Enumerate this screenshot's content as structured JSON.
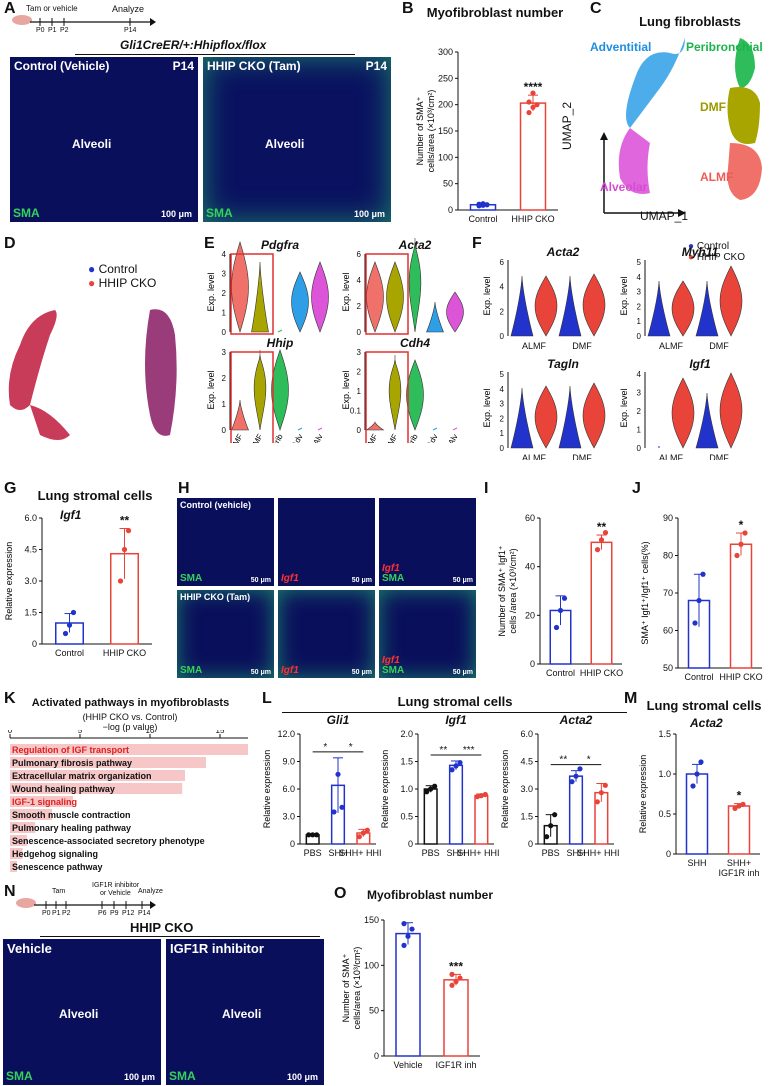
{
  "panels": {
    "A": {
      "label": "A",
      "timeline_treat": "Tam or vehicle",
      "timeline_analyze": "Analyze",
      "timeline_p0": "P0",
      "timeline_p1": "P1",
      "timeline_p2": "P2",
      "timeline_p14": "P14",
      "genotype": "Gli1CreER/+:Hhipflox/flox",
      "img1_title": "Control (Vehicle)",
      "img2_title": "HHIP CKO (Tam)",
      "age": "P14",
      "alveoli": "Alveoli",
      "sma": "SMA",
      "scale": "100 μm"
    },
    "B": {
      "label": "B",
      "title": "Myofibroblast number",
      "ylabel": "Number of SMA⁺ cells/area (×10³/cm²)",
      "sig": "****"
    },
    "C": {
      "label": "C",
      "title": "Lung fibroblasts",
      "xlabel": "UMAP_1",
      "ylabel": "UMAP_2",
      "clusters": [
        "Adventitial",
        "Peribronchial",
        "DMF",
        "Alveolar",
        "ALMF"
      ]
    },
    "D": {
      "label": "D",
      "legend": [
        "Control",
        "HHIP CKO"
      ]
    },
    "E": {
      "label": "E",
      "genes": [
        "Pdgfra",
        "Acta2",
        "Hhip",
        "Cdh4"
      ],
      "ylabel": "Exp. level",
      "groups": [
        "ALMF",
        "DMF",
        "Perib",
        "Adv",
        "Alv"
      ]
    },
    "F": {
      "label": "F",
      "genes": [
        "Acta2",
        "Myh11",
        "Tagln",
        "Igf1"
      ],
      "ylabel": "Exp. level",
      "groups": [
        "ALMF",
        "DMF"
      ],
      "legend": [
        "Control",
        "HHIP CKO"
      ]
    },
    "G": {
      "label": "G",
      "title": "Lung stromal cells",
      "gene": "Igf1",
      "ylabel": "Relative expression",
      "sig": "**"
    },
    "H": {
      "label": "H",
      "row1": "Control (vehicle)",
      "row2": "HHIP CKO (Tam)",
      "sma": "SMA",
      "igf1": "Igf1",
      "scale": "50 μm"
    },
    "I": {
      "label": "I",
      "ylabel": "Number of SMA⁺ Igf1⁺ cells /area (×10³/cm²)",
      "sig": "**"
    },
    "J": {
      "label": "J",
      "ylabel": "SMA⁺ Igf1⁺/Igf1⁺ cells(%)",
      "sig": "*"
    },
    "K": {
      "label": "K",
      "title": "Activated pathways in myofibroblasts",
      "subtitle": "(HHIP CKO vs. Control)",
      "axis_title": "−log (p value)"
    },
    "L": {
      "label": "L",
      "title": "Lung stromal cells",
      "ylabel": "Relative expression"
    },
    "M": {
      "label": "M",
      "title": "Lung stromal cells",
      "gene": "Acta2",
      "ylabel": "Relative expression",
      "sig": "*"
    },
    "N": {
      "label": "N",
      "timeline_tam": "Tam",
      "timeline_inh": "IGF1R inhibitor",
      "timeline_or": "or Vehicle",
      "timeline_analyze": "Analyze",
      "timeline_p0": "P0",
      "timeline_p1": "P1",
      "timeline_p2": "P2",
      "timeline_p6": "P6",
      "timeline_p9": "P9",
      "timeline_p12": "P12",
      "timeline_p14": "P14",
      "group": "HHIP CKO",
      "img1": "Vehicle",
      "img2": "IGF1R inhibitor",
      "alveoli": "Alveoli",
      "sma": "SMA",
      "scale": "100 μm"
    },
    "O": {
      "label": "O",
      "title": "Myofibroblast number",
      "ylabel": "Number of SMA⁺ cells/area (×10³/cm²)",
      "sig": "***"
    }
  },
  "chart_data": [
    {
      "panel": "B",
      "type": "bar",
      "categories": [
        "Control",
        "HHIP CKO"
      ],
      "values": [
        10,
        203
      ],
      "errors": [
        3,
        15
      ],
      "points": [
        [
          8,
          9,
          10,
          11,
          12
        ],
        [
          185,
          195,
          200,
          205,
          222
        ]
      ],
      "colors": [
        "#2233cc",
        "#e8443a"
      ],
      "ylim": [
        0,
        300
      ],
      "yticks": [
        0,
        50,
        100,
        150,
        200,
        250,
        300
      ],
      "sig": "****"
    },
    {
      "panel": "G",
      "type": "bar",
      "categories": [
        "Control",
        "HHIP CKO"
      ],
      "values": [
        1.0,
        4.3
      ],
      "errors": [
        0.45,
        1.2
      ],
      "points": [
        [
          0.5,
          0.9,
          1.5
        ],
        [
          3.0,
          4.5,
          5.4
        ]
      ],
      "colors": [
        "#2233cc",
        "#e8443a"
      ],
      "ylim": [
        0,
        6.0
      ],
      "yticks": [
        0,
        1.5,
        3.0,
        4.5,
        6.0
      ],
      "sig": "**"
    },
    {
      "panel": "I",
      "type": "bar",
      "categories": [
        "Control",
        "HHIP CKO"
      ],
      "values": [
        22,
        50
      ],
      "errors": [
        6,
        3
      ],
      "points": [
        [
          15,
          22,
          27
        ],
        [
          47,
          51,
          54
        ]
      ],
      "colors": [
        "#2233cc",
        "#e8443a"
      ],
      "ylim": [
        0,
        60
      ],
      "yticks": [
        0,
        20,
        40,
        60
      ],
      "sig": "**"
    },
    {
      "panel": "J",
      "type": "bar",
      "categories": [
        "Control",
        "HHIP CKO"
      ],
      "values": [
        68,
        83
      ],
      "errors": [
        7,
        3
      ],
      "points": [
        [
          62,
          68,
          75
        ],
        [
          80,
          83,
          86
        ]
      ],
      "colors": [
        "#2233cc",
        "#e8443a"
      ],
      "ylim": [
        50,
        90
      ],
      "yticks": [
        50,
        60,
        70,
        80,
        90
      ],
      "sig": "*"
    },
    {
      "panel": "K",
      "type": "bar",
      "orientation": "horizontal",
      "categories": [
        "Regulation of IGF transport",
        "Pulmonary fibrosis pathway",
        "Extracellular matrix organization",
        "Wound healing pathway",
        "IGF-1 signaling",
        "Smooth muscle contraction",
        "Pulmonary healing pathway",
        "Senescence-associated secretory phenotype",
        "Hedgehog signaling",
        "Senescence pathway"
      ],
      "values": [
        17,
        14,
        12.5,
        12.3,
        4.5,
        3,
        1.8,
        1.2,
        0.9,
        0.5
      ],
      "highlight": [
        true,
        false,
        false,
        false,
        true,
        false,
        false,
        false,
        false,
        false
      ],
      "xlim": [
        0,
        17
      ],
      "xticks": [
        0,
        5,
        10,
        15
      ]
    },
    {
      "panel": "L",
      "gene": "Gli1",
      "type": "bar",
      "categories": [
        "PBS",
        "SHH",
        "SHH+ HHIP"
      ],
      "values": [
        1.0,
        6.4,
        1.2
      ],
      "errors": [
        0.1,
        3.0,
        0.4
      ],
      "points": [
        [
          1.0,
          1.0,
          1.0
        ],
        [
          3.5,
          7.6,
          4.0
        ],
        [
          0.8,
          1.2,
          1.5
        ]
      ],
      "colors": [
        "#111111",
        "#2233cc",
        "#e8443a"
      ],
      "ylim": [
        0,
        12
      ],
      "yticks": [
        0,
        3,
        6,
        9,
        12
      ],
      "sig": [
        "*",
        "*"
      ]
    },
    {
      "panel": "L",
      "gene": "Igf1",
      "type": "bar",
      "categories": [
        "PBS",
        "SHH",
        "SHH+ HHIP"
      ],
      "values": [
        1.0,
        1.43,
        0.88
      ],
      "errors": [
        0.06,
        0.08,
        0.03
      ],
      "points": [
        [
          0.95,
          1.0,
          1.05
        ],
        [
          1.35,
          1.42,
          1.48
        ],
        [
          0.86,
          0.88,
          0.9
        ]
      ],
      "colors": [
        "#111111",
        "#2233cc",
        "#e8443a"
      ],
      "ylim": [
        0,
        2.0
      ],
      "yticks": [
        0,
        0.5,
        1.0,
        1.5,
        2.0
      ],
      "sig": [
        "**",
        "***"
      ]
    },
    {
      "panel": "L",
      "gene": "Acta2",
      "type": "bar",
      "categories": [
        "PBS",
        "SHH",
        "SHH+ HHIP"
      ],
      "values": [
        1.0,
        3.7,
        2.8
      ],
      "errors": [
        0.6,
        0.3,
        0.5
      ],
      "points": [
        [
          0.4,
          1.0,
          1.6
        ],
        [
          3.4,
          3.7,
          4.1
        ],
        [
          2.3,
          2.8,
          3.2
        ]
      ],
      "colors": [
        "#111111",
        "#2233cc",
        "#e8443a"
      ],
      "ylim": [
        0,
        6.0
      ],
      "yticks": [
        0,
        1.5,
        3.0,
        4.5,
        6.0
      ],
      "sig": [
        "**",
        "*"
      ]
    },
    {
      "panel": "M",
      "type": "bar",
      "categories": [
        "SHH",
        "SHH+ IGF1R inh"
      ],
      "values": [
        1.0,
        0.6
      ],
      "errors": [
        0.12,
        0.03
      ],
      "points": [
        [
          0.85,
          1.0,
          1.15
        ],
        [
          0.57,
          0.6,
          0.62
        ]
      ],
      "colors": [
        "#2233cc",
        "#e8443a"
      ],
      "ylim": [
        0,
        1.5
      ],
      "yticks": [
        0,
        0.5,
        1.0,
        1.5
      ],
      "sig": "*"
    },
    {
      "panel": "O",
      "type": "bar",
      "categories": [
        "Vehicle",
        "IGF1R inh"
      ],
      "values": [
        135,
        84
      ],
      "errors": [
        12,
        6
      ],
      "points": [
        [
          122,
          132,
          140,
          146
        ],
        [
          78,
          82,
          86,
          90
        ]
      ],
      "colors": [
        "#2233cc",
        "#e8443a"
      ],
      "ylim": [
        0,
        150
      ],
      "yticks": [
        0,
        50,
        100,
        150
      ],
      "sig": "***"
    }
  ]
}
